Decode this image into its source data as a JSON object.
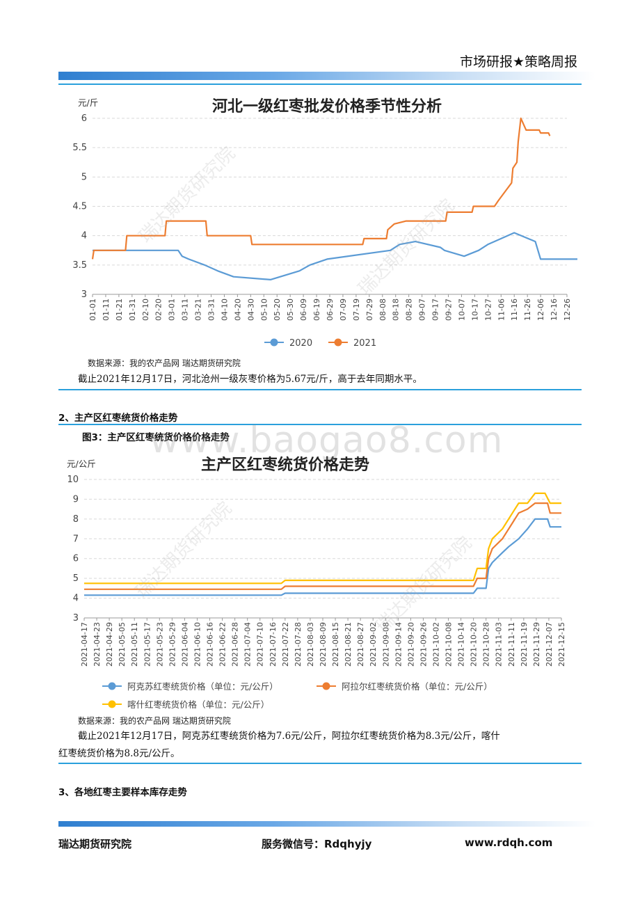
{
  "header": {
    "title": "市场研报★策略周报"
  },
  "chart1": {
    "unit": "元/斤",
    "legend_2020": "2020",
    "legend_2021": "2021",
    "source": "数据来源：我的农产品网 瑞达期货研究院",
    "caption": "截止2021年12月17日，河北沧州一级灰枣价格为5.67元/斤，高于去年同期水平。"
  },
  "section2": {
    "heading": "2、主产区红枣统货价格走势",
    "figure": "图3：主产区红枣统货价格价格走势"
  },
  "chart2": {
    "unit": "元/公斤",
    "source": "数据来源：我的农产品网 瑞达期货研究院",
    "caption_line1": "截止2021年12月17日，阿克苏红枣统货价格为7.6元/公斤，阿拉尔红枣统货价格为8.3元/公斤，喀什",
    "caption_line2": "红枣统货价格为8.8元/公斤。"
  },
  "section3": {
    "heading": "3、各地红枣主要样本库存走势"
  },
  "watermark": {
    "text": "www.baogao8.com",
    "diag": "瑞达期货研究院"
  },
  "footer": {
    "org": "瑞达期货研究院",
    "wechat": "服务微信号：Rdqhyjy",
    "site": "www.rdqh.com"
  },
  "chart_data": [
    {
      "type": "line",
      "title": "河北一级红枣批发价格季节性分析",
      "ylabel": "元/斤",
      "ylim": [
        3,
        6
      ],
      "yticks": [
        "3",
        "3.5",
        "4",
        "4.5",
        "5",
        "5.5",
        "6"
      ],
      "categories": [
        "01-01",
        "01-11",
        "01-21",
        "01-31",
        "02-10",
        "02-20",
        "03-01",
        "03-11",
        "03-21",
        "03-31",
        "04-10",
        "04-20",
        "04-30",
        "05-10",
        "05-20",
        "05-30",
        "06-09",
        "06-19",
        "06-29",
        "07-09",
        "07-19",
        "07-29",
        "08-08",
        "08-18",
        "08-28",
        "09-07",
        "09-17",
        "09-27",
        "10-07",
        "10-17",
        "10-27",
        "11-06",
        "11-16",
        "11-26",
        "12-06",
        "12-16",
        "12-26"
      ],
      "series": [
        {
          "name": "2020",
          "color": "#5b9bd5",
          "points": [
            [
              0,
              3.75
            ],
            [
              6.5,
              3.75
            ],
            [
              6.8,
              3.65
            ],
            [
              7.3,
              3.6
            ],
            [
              8.5,
              3.5
            ],
            [
              9.5,
              3.4
            ],
            [
              10.7,
              3.3
            ],
            [
              13.5,
              3.25
            ],
            [
              15.7,
              3.4
            ],
            [
              16.5,
              3.5
            ],
            [
              17.8,
              3.6
            ],
            [
              22.6,
              3.75
            ],
            [
              23.3,
              3.85
            ],
            [
              24.5,
              3.9
            ],
            [
              26.4,
              3.8
            ],
            [
              26.7,
              3.75
            ],
            [
              28.2,
              3.65
            ],
            [
              29.3,
              3.75
            ],
            [
              30.0,
              3.85
            ],
            [
              31.0,
              3.95
            ],
            [
              32.0,
              4.05
            ],
            [
              33.6,
              3.9
            ],
            [
              34.0,
              3.6
            ],
            [
              36.8,
              3.6
            ]
          ]
        },
        {
          "name": "2021",
          "color": "#ed7d31",
          "points": [
            [
              0,
              3.6
            ],
            [
              0.1,
              3.75
            ],
            [
              2.5,
              3.75
            ],
            [
              2.6,
              4.0
            ],
            [
              5.5,
              4.0
            ],
            [
              5.6,
              4.25
            ],
            [
              8.6,
              4.25
            ],
            [
              8.7,
              4.0
            ],
            [
              12.0,
              4.0
            ],
            [
              12.1,
              3.85
            ],
            [
              20.5,
              3.85
            ],
            [
              20.6,
              3.95
            ],
            [
              22.3,
              3.95
            ],
            [
              22.4,
              4.1
            ],
            [
              22.9,
              4.2
            ],
            [
              23.8,
              4.25
            ],
            [
              26.8,
              4.25
            ],
            [
              26.9,
              4.4
            ],
            [
              28.8,
              4.4
            ],
            [
              28.9,
              4.5
            ],
            [
              30.5,
              4.5
            ],
            [
              30.8,
              4.6
            ],
            [
              31.3,
              4.75
            ],
            [
              31.8,
              4.9
            ],
            [
              31.9,
              5.15
            ],
            [
              32.2,
              5.25
            ],
            [
              32.3,
              5.6
            ],
            [
              32.5,
              6.0
            ],
            [
              32.6,
              5.95
            ],
            [
              32.9,
              5.8
            ],
            [
              33.9,
              5.8
            ],
            [
              34.0,
              5.75
            ],
            [
              34.6,
              5.75
            ],
            [
              34.7,
              5.7
            ]
          ]
        }
      ],
      "legend": "bottom",
      "grid": true
    },
    {
      "type": "line",
      "title": "主产区红枣统货价格走势",
      "ylabel": "元/公斤",
      "ylim": [
        3,
        10
      ],
      "yticks": [
        "3",
        "4",
        "5",
        "6",
        "7",
        "8",
        "9",
        "10"
      ],
      "categories": [
        "2021-04-17",
        "2021-04-23",
        "2021-04-29",
        "2021-05-05",
        "2021-05-11",
        "2021-05-17",
        "2021-05-23",
        "2021-05-29",
        "2021-06-04",
        "2021-06-10",
        "2021-06-16",
        "2021-06-22",
        "2021-06-28",
        "2021-07-04",
        "2021-07-10",
        "2021-07-16",
        "2021-07-22",
        "2021-07-28",
        "2021-08-03",
        "2021-08-09",
        "2021-08-15",
        "2021-08-21",
        "2021-08-27",
        "2021-09-02",
        "2021-09-08",
        "2021-09-14",
        "2021-09-20",
        "2021-09-26",
        "2021-10-02",
        "2021-10-08",
        "2021-10-14",
        "2021-10-20",
        "2021-10-28",
        "2021-11-03",
        "2021-11-11",
        "2021-11-19",
        "2021-11-29",
        "2021-12-07",
        "2021-12-15"
      ],
      "series": [
        {
          "name": "阿克苏红枣统货价格（单位：元/公斤）",
          "color": "#5b9bd5",
          "points": [
            [
              0,
              4.15
            ],
            [
              15.7,
              4.15
            ],
            [
              16.0,
              4.25
            ],
            [
              31.0,
              4.25
            ],
            [
              31.3,
              4.5
            ],
            [
              32.0,
              4.5
            ],
            [
              32.2,
              5.5
            ],
            [
              32.5,
              5.8
            ],
            [
              33.3,
              6.3
            ],
            [
              33.8,
              6.6
            ],
            [
              34.2,
              6.8
            ],
            [
              34.6,
              7.0
            ],
            [
              35.3,
              7.5
            ],
            [
              35.9,
              8.0
            ],
            [
              36.9,
              8.0
            ],
            [
              37.1,
              7.6
            ],
            [
              38.0,
              7.6
            ]
          ]
        },
        {
          "name": "阿拉尔红枣统货价格（单位：元/公斤）",
          "color": "#ed7d31",
          "points": [
            [
              0,
              4.45
            ],
            [
              15.7,
              4.45
            ],
            [
              16.0,
              4.6
            ],
            [
              31.0,
              4.6
            ],
            [
              31.3,
              5.0
            ],
            [
              32.0,
              5.0
            ],
            [
              32.2,
              6.0
            ],
            [
              32.5,
              6.5
            ],
            [
              33.3,
              7.0
            ],
            [
              33.8,
              7.5
            ],
            [
              34.3,
              8.0
            ],
            [
              34.6,
              8.3
            ],
            [
              35.3,
              8.5
            ],
            [
              35.9,
              8.8
            ],
            [
              36.9,
              8.8
            ],
            [
              37.1,
              8.3
            ],
            [
              38.0,
              8.3
            ]
          ]
        },
        {
          "name": "喀什红枣统货价格（单位：元/公斤）",
          "color": "#ffc000",
          "points": [
            [
              0,
              4.75
            ],
            [
              15.7,
              4.75
            ],
            [
              16.0,
              4.9
            ],
            [
              31.0,
              4.9
            ],
            [
              31.3,
              5.5
            ],
            [
              32.0,
              5.5
            ],
            [
              32.2,
              6.5
            ],
            [
              32.5,
              7.0
            ],
            [
              33.3,
              7.5
            ],
            [
              33.8,
              8.0
            ],
            [
              34.3,
              8.5
            ],
            [
              34.6,
              8.8
            ],
            [
              35.3,
              8.8
            ],
            [
              35.9,
              9.3
            ],
            [
              36.7,
              9.3
            ],
            [
              37.1,
              8.8
            ],
            [
              38.0,
              8.8
            ]
          ]
        }
      ],
      "legend": "bottom",
      "grid": true
    }
  ]
}
